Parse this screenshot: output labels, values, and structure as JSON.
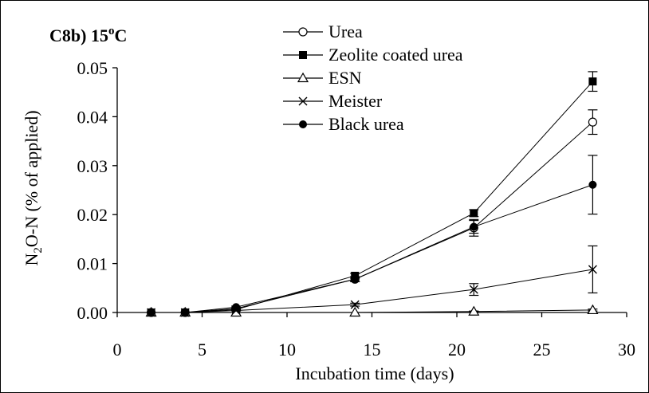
{
  "chart_data": {
    "type": "line",
    "panel_label": "C8b) 15",
    "panel_label_sup": "o",
    "panel_label_unit": "C",
    "xlabel": "Incubation time (days)",
    "ylabel": "N2O-N (% of applied)",
    "ylabel_parts": {
      "a": "N",
      "sub": "2",
      "b": "O-N (% of applied)"
    },
    "xlim": [
      0,
      30
    ],
    "ylim": [
      0,
      0.05
    ],
    "xticks": [
      0,
      5,
      10,
      15,
      20,
      25,
      30
    ],
    "xtick_labels": [
      "0",
      "5",
      "10",
      "15",
      "20",
      "25",
      "30"
    ],
    "yticks": [
      0,
      0.01,
      0.02,
      0.03,
      0.04,
      0.05
    ],
    "ytick_labels": [
      "0.00",
      "0.01",
      "0.02",
      "0.03",
      "0.04",
      "0.05"
    ],
    "grid": false,
    "legend_position": "top-center",
    "x": [
      2,
      4,
      7,
      14,
      21,
      28
    ],
    "series": [
      {
        "name": "Urea",
        "marker": "open-circle",
        "values": [
          0,
          0,
          0.0008,
          0.0068,
          0.0173,
          0.0389
        ],
        "errors": [
          0,
          0,
          0.0002,
          0.0005,
          0.0017,
          0.0025
        ]
      },
      {
        "name": "Zeolite coated urea",
        "marker": "filled-square",
        "values": [
          0,
          0,
          0.0006,
          0.0075,
          0.0203,
          0.0472
        ],
        "errors": [
          0,
          0,
          0.0002,
          0.0005,
          0.0007,
          0.002
        ]
      },
      {
        "name": "ESN",
        "marker": "open-triangle",
        "values": [
          0,
          0,
          0,
          0,
          0.0002,
          0.0005
        ],
        "errors": [
          0,
          0,
          0,
          0,
          0.0001,
          0.0002
        ]
      },
      {
        "name": "Meister",
        "marker": "cross",
        "values": [
          0,
          0,
          0.0004,
          0.0016,
          0.0047,
          0.0088
        ],
        "errors": [
          0,
          0,
          0.0001,
          0.0003,
          0.0012,
          0.0048
        ]
      },
      {
        "name": "Black urea",
        "marker": "filled-circle",
        "values": [
          0,
          0,
          0.0011,
          0.0068,
          0.0175,
          0.0261
        ],
        "errors": [
          0,
          0,
          0.0002,
          0.0005,
          0.0013,
          0.006
        ]
      }
    ]
  }
}
